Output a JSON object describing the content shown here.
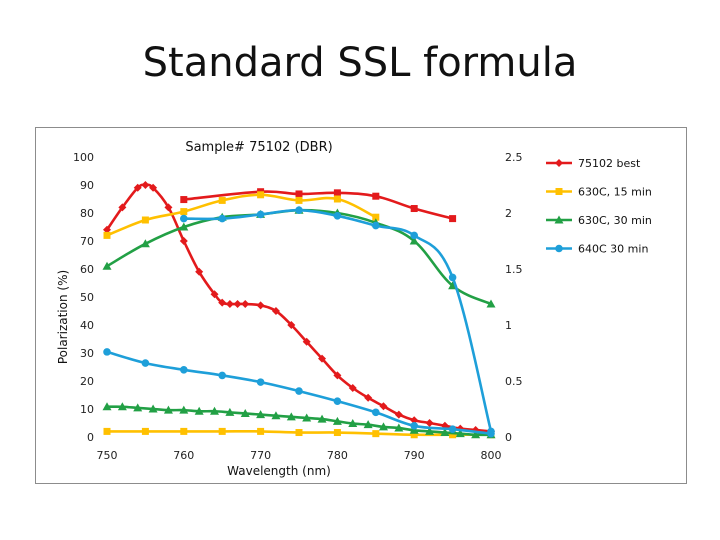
{
  "slide": {
    "title": "Standard SSL formula"
  },
  "chart_data": {
    "type": "line",
    "title": "Sample# 75102 (DBR)",
    "xlabel": "Wavelength (nm)",
    "ylabel": "Polarization (%)",
    "xlim": [
      750,
      800
    ],
    "ylim": [
      0,
      100
    ],
    "y2lim": [
      0,
      2.5
    ],
    "x_ticks": [
      750,
      760,
      770,
      780,
      790,
      800
    ],
    "y_ticks": [
      0,
      10,
      20,
      30,
      40,
      50,
      60,
      70,
      80,
      90,
      100
    ],
    "y2_ticks": [
      "0",
      "0.5",
      "1",
      "1.5",
      "2",
      "2.5"
    ],
    "series": [
      {
        "name": "75102 best",
        "axis": "left",
        "color": "#e31a1c",
        "marker": "diamond",
        "x": [
          750,
          752,
          754,
          755,
          756,
          758,
          760,
          762,
          764,
          765,
          766,
          767,
          768,
          770,
          772,
          774,
          776,
          778,
          780,
          782,
          784,
          786,
          788,
          790,
          792,
          794,
          796,
          798,
          800
        ],
        "y": [
          74,
          82,
          89,
          90,
          89,
          82,
          70,
          59,
          51,
          48,
          47.5,
          47.5,
          47.5,
          47,
          45,
          40,
          34,
          28,
          22,
          17.5,
          14,
          11,
          8,
          6,
          5,
          4,
          3,
          2.5,
          2
        ]
      },
      {
        "name": "75102 best",
        "axis": "right",
        "color": "#e31a1c",
        "marker": "square",
        "x": [
          760,
          770,
          775,
          780,
          785,
          790,
          795
        ],
        "y": [
          2.12,
          2.19,
          2.17,
          2.18,
          2.15,
          2.04,
          1.95
        ]
      },
      {
        "name": "630C, 15 min",
        "axis": "left",
        "color": "#ffc000",
        "marker": "square",
        "x": [
          750,
          755,
          760,
          765,
          770,
          775,
          780,
          785
        ],
        "y": [
          72,
          77.5,
          80.5,
          84.5,
          86.5,
          84.5,
          85,
          78.5
        ]
      },
      {
        "name": "630C, 15 min",
        "axis": "right",
        "color": "#ffc000",
        "marker": "square",
        "x": [
          750,
          755,
          760,
          765,
          770,
          775,
          780,
          785,
          790,
          795,
          800
        ],
        "y": [
          0.05,
          0.05,
          0.05,
          0.05,
          0.05,
          0.04,
          0.04,
          0.03,
          0.02,
          0.02,
          0.02
        ]
      },
      {
        "name": "630C, 30 min",
        "axis": "left",
        "color": "#22a045",
        "marker": "triangle",
        "x": [
          750,
          755,
          760,
          765,
          770,
          775,
          780,
          785,
          790,
          795,
          800
        ],
        "y": [
          61,
          69,
          75,
          78.5,
          79.5,
          81,
          80,
          76.5,
          70,
          54,
          47.5
        ]
      },
      {
        "name": "630C, 30 min",
        "axis": "right",
        "color": "#22a045",
        "marker": "triangle",
        "x": [
          750,
          752,
          754,
          756,
          758,
          760,
          762,
          764,
          766,
          768,
          770,
          772,
          774,
          776,
          778,
          780,
          782,
          784,
          786,
          788,
          790,
          792,
          794,
          796,
          798,
          800
        ],
        "y": [
          0.27,
          0.27,
          0.26,
          0.25,
          0.24,
          0.24,
          0.23,
          0.23,
          0.22,
          0.21,
          0.2,
          0.19,
          0.18,
          0.17,
          0.16,
          0.14,
          0.12,
          0.11,
          0.09,
          0.08,
          0.06,
          0.05,
          0.04,
          0.03,
          0.02,
          0.02
        ]
      },
      {
        "name": "640C 30 min",
        "axis": "left",
        "color": "#1e9fd9",
        "marker": "circle",
        "x": [
          760,
          765,
          770,
          775,
          780,
          785,
          790,
          795,
          800
        ],
        "y": [
          78,
          78,
          79.5,
          81,
          79,
          75.5,
          72,
          57,
          2
        ]
      },
      {
        "name": "640C 30 min",
        "axis": "right",
        "color": "#1e9fd9",
        "marker": "circle",
        "x": [
          750,
          755,
          760,
          765,
          770,
          775,
          780,
          785,
          790,
          795,
          800
        ],
        "y": [
          0.76,
          0.66,
          0.6,
          0.55,
          0.49,
          0.41,
          0.32,
          0.22,
          0.1,
          0.07,
          0.03
        ]
      }
    ],
    "legend": [
      {
        "label": "75102 best",
        "color": "#e31a1c",
        "marker": "diamond"
      },
      {
        "label": "630C, 15 min",
        "color": "#ffc000",
        "marker": "square"
      },
      {
        "label": "630C, 30 min",
        "color": "#22a045",
        "marker": "triangle"
      },
      {
        "label": "640C 30 min",
        "color": "#1e9fd9",
        "marker": "circle"
      }
    ],
    "legend_position": "right"
  }
}
